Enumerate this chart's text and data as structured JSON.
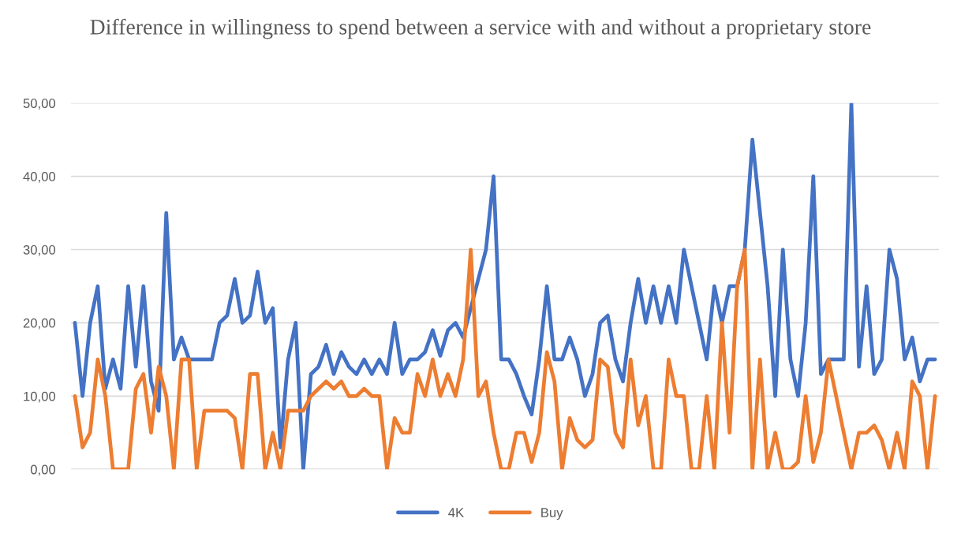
{
  "chart_data": {
    "type": "line",
    "title": "Difference in willingness to spend between a service with and without a proprietary store",
    "categories": [
      null,
      null,
      null,
      null,
      null,
      null,
      null,
      null,
      null,
      null,
      null,
      null,
      null,
      null,
      null,
      null,
      null,
      null,
      null,
      null,
      null,
      null,
      null,
      null,
      null,
      null,
      null,
      null,
      null,
      null,
      null,
      null,
      null,
      null,
      null,
      null,
      null,
      null,
      null,
      null,
      null,
      null,
      null,
      null,
      null,
      null,
      null,
      null,
      null,
      null,
      null,
      null,
      null,
      null,
      null,
      null,
      null,
      null,
      null,
      null,
      null,
      null,
      null,
      null,
      null,
      null,
      null,
      null,
      null,
      null,
      null,
      null,
      null,
      null,
      null,
      null,
      null,
      null,
      null,
      null,
      null,
      null,
      null,
      null,
      null,
      null,
      null,
      null,
      null,
      null,
      null,
      null,
      null,
      null,
      null,
      null,
      null,
      null,
      null,
      null,
      null,
      null,
      null,
      null,
      null,
      null,
      null,
      null,
      null,
      null,
      null,
      null,
      null,
      null
    ],
    "series": [
      {
        "name": "4K",
        "color": "#4472c4",
        "values": [
          20,
          10,
          20,
          25,
          11,
          15,
          11,
          25,
          14,
          25,
          12,
          8,
          35,
          15,
          18,
          15,
          15,
          15,
          15,
          20,
          21,
          26,
          20,
          21,
          27,
          20,
          22,
          3,
          15,
          20,
          0,
          13,
          14,
          17,
          13,
          16,
          14,
          13,
          15,
          13,
          15,
          13,
          20,
          13,
          15,
          15,
          16,
          19,
          15.5,
          19,
          20,
          18,
          null,
          null,
          30,
          40,
          15,
          15,
          13,
          10,
          7.5,
          15,
          25,
          15,
          15,
          18,
          15,
          10,
          13,
          20,
          21,
          15,
          12,
          20,
          26,
          20,
          25,
          20,
          25,
          20,
          30,
          25,
          20,
          15,
          25,
          20,
          25,
          25,
          30,
          45,
          35,
          25,
          10,
          30,
          15,
          10,
          20,
          40,
          13,
          15,
          15,
          15,
          50,
          14,
          25,
          13,
          15,
          30,
          26,
          15,
          18,
          12,
          15,
          15
        ]
      },
      {
        "name": "Buy",
        "color": "#ed7d31",
        "values": [
          10,
          3,
          5,
          15,
          10,
          0,
          0,
          0,
          11,
          13,
          5,
          14,
          10,
          0,
          15,
          15,
          0,
          8,
          8,
          8,
          8,
          7,
          0,
          13,
          13,
          0,
          5,
          0,
          8,
          8,
          8,
          10,
          11,
          12,
          11,
          12,
          10,
          10,
          11,
          10,
          10,
          0,
          7,
          5,
          5,
          13,
          10,
          15,
          10,
          13,
          10,
          15,
          30,
          10,
          12,
          5,
          0,
          0,
          5,
          5,
          1,
          5,
          16,
          12,
          0,
          7,
          4,
          3,
          4,
          15,
          14,
          5,
          3,
          15,
          6,
          10,
          0,
          0,
          15,
          10,
          10,
          0,
          0,
          10,
          0,
          20,
          5,
          25,
          30,
          0,
          15,
          0,
          5,
          0,
          0,
          1,
          10,
          1,
          5,
          15,
          10,
          5,
          0,
          5,
          5,
          6,
          4,
          0,
          5,
          0,
          12,
          10,
          0,
          10
        ]
      }
    ],
    "ylim": [
      0,
      50
    ],
    "yticks": [
      {
        "value": 0,
        "label": "0,00"
      },
      {
        "value": 10,
        "label": "10,00"
      },
      {
        "value": 20,
        "label": "20,00"
      },
      {
        "value": 30,
        "label": "30,00"
      },
      {
        "value": 40,
        "label": "40,00"
      },
      {
        "value": 50,
        "label": "50,00"
      }
    ],
    "grid": "y",
    "legend": "bottom",
    "marker": "none",
    "line_style": "solid"
  }
}
